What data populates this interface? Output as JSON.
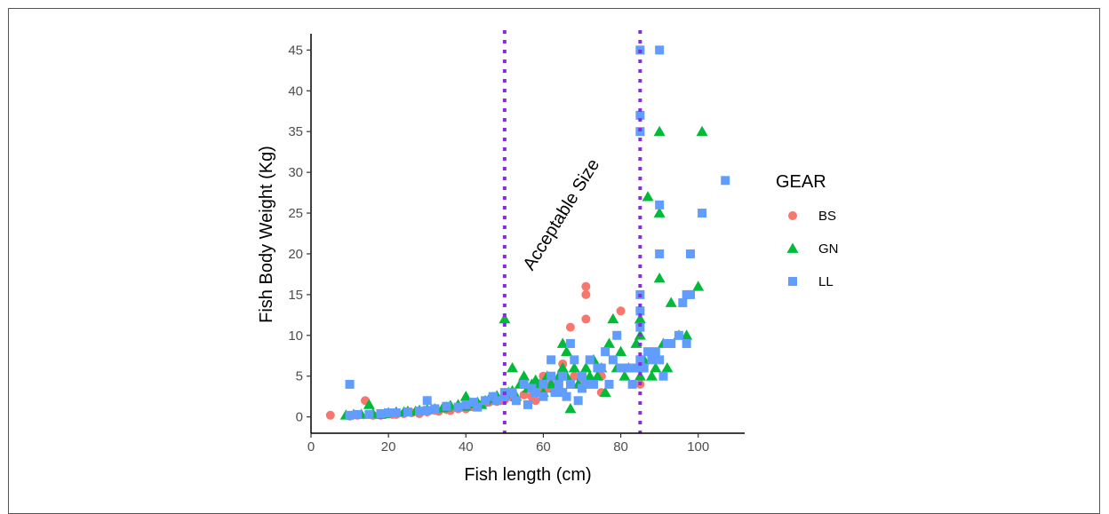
{
  "chart_data": {
    "type": "scatter",
    "title": "",
    "xlabel": "Fish length (cm)",
    "ylabel": "Fish Body Weight (Kg)",
    "xlim": [
      0,
      112
    ],
    "ylim": [
      -2,
      47
    ],
    "xticks": [
      0,
      20,
      40,
      60,
      80,
      100
    ],
    "yticks": [
      0,
      5,
      10,
      15,
      20,
      25,
      30,
      35,
      40,
      45
    ],
    "grid": false,
    "legend": {
      "title": "GEAR",
      "position": "right"
    },
    "vlines": [
      {
        "x": 50,
        "color": "#8a2be2",
        "style": "dotted"
      },
      {
        "x": 85,
        "color": "#8a2be2",
        "style": "dotted"
      }
    ],
    "annotations": [
      {
        "text": "Acceptable Size",
        "x": 64,
        "y": 25,
        "rotation": -58
      }
    ],
    "series": [
      {
        "name": "BS",
        "color": "#f8766d",
        "marker": "circle",
        "points": [
          [
            5,
            0.2
          ],
          [
            10,
            0.1
          ],
          [
            12,
            0.2
          ],
          [
            14,
            2
          ],
          [
            15,
            0.3
          ],
          [
            16,
            0.2
          ],
          [
            18,
            0.2
          ],
          [
            19,
            0.3
          ],
          [
            20,
            0.4
          ],
          [
            21,
            0.3
          ],
          [
            22,
            0.3
          ],
          [
            24,
            0.4
          ],
          [
            26,
            0.5
          ],
          [
            28,
            0.4
          ],
          [
            30,
            0.6
          ],
          [
            32,
            0.8
          ],
          [
            33,
            0.7
          ],
          [
            35,
            0.9
          ],
          [
            36,
            0.8
          ],
          [
            38,
            1
          ],
          [
            40,
            1
          ],
          [
            42,
            1.2
          ],
          [
            44,
            1.5
          ],
          [
            45,
            1.7
          ],
          [
            46,
            1.8
          ],
          [
            48,
            1.9
          ],
          [
            49,
            2
          ],
          [
            50,
            2.1
          ],
          [
            52,
            2.4
          ],
          [
            55,
            2.7
          ],
          [
            57,
            2.5
          ],
          [
            58,
            2
          ],
          [
            59,
            3
          ],
          [
            60,
            5
          ],
          [
            61,
            3.5
          ],
          [
            62,
            4
          ],
          [
            64,
            4.5
          ],
          [
            65,
            6.5
          ],
          [
            67,
            11
          ],
          [
            68,
            5
          ],
          [
            70,
            4
          ],
          [
            71,
            16
          ],
          [
            71,
            15
          ],
          [
            71,
            12
          ],
          [
            75,
            3
          ],
          [
            75,
            5
          ],
          [
            80,
            13
          ],
          [
            85,
            4
          ]
        ]
      },
      {
        "name": "GN",
        "color": "#00ba38",
        "marker": "triangle",
        "points": [
          [
            9,
            0.2
          ],
          [
            11,
            0.3
          ],
          [
            13,
            0.3
          ],
          [
            15,
            1.5
          ],
          [
            16,
            0.4
          ],
          [
            18,
            0.3
          ],
          [
            19,
            0.4
          ],
          [
            20,
            0.5
          ],
          [
            22,
            0.6
          ],
          [
            24,
            0.6
          ],
          [
            25,
            0.7
          ],
          [
            27,
            0.7
          ],
          [
            28,
            0.8
          ],
          [
            30,
            0.9
          ],
          [
            32,
            1
          ],
          [
            34,
            1.1
          ],
          [
            35,
            1.2
          ],
          [
            36,
            1.4
          ],
          [
            38,
            1.5
          ],
          [
            40,
            2.5
          ],
          [
            40,
            1.3
          ],
          [
            42,
            1.6
          ],
          [
            43,
            1.8
          ],
          [
            44,
            1.5
          ],
          [
            45,
            2
          ],
          [
            46,
            2.2
          ],
          [
            47,
            2.4
          ],
          [
            48,
            2.6
          ],
          [
            50,
            2.8
          ],
          [
            50,
            12
          ],
          [
            51,
            3
          ],
          [
            52,
            6
          ],
          [
            52,
            3.2
          ],
          [
            53,
            2.5
          ],
          [
            54,
            4
          ],
          [
            55,
            5
          ],
          [
            56,
            3.5
          ],
          [
            57,
            4
          ],
          [
            58,
            4.5
          ],
          [
            59,
            4
          ],
          [
            60,
            3
          ],
          [
            61,
            5
          ],
          [
            62,
            4
          ],
          [
            63,
            3.5
          ],
          [
            64,
            5
          ],
          [
            65,
            9
          ],
          [
            65,
            6
          ],
          [
            66,
            8
          ],
          [
            66,
            5
          ],
          [
            67,
            1
          ],
          [
            68,
            6
          ],
          [
            69,
            4
          ],
          [
            70,
            5
          ],
          [
            71,
            6
          ],
          [
            72,
            5
          ],
          [
            73,
            7
          ],
          [
            74,
            5
          ],
          [
            75,
            6
          ],
          [
            76,
            3
          ],
          [
            77,
            9
          ],
          [
            78,
            12
          ],
          [
            79,
            6
          ],
          [
            80,
            8
          ],
          [
            81,
            5
          ],
          [
            82,
            6
          ],
          [
            84,
            9
          ],
          [
            85,
            12
          ],
          [
            85,
            10
          ],
          [
            85,
            5
          ],
          [
            86,
            7
          ],
          [
            87,
            27
          ],
          [
            88,
            5
          ],
          [
            89,
            6
          ],
          [
            90,
            35
          ],
          [
            90,
            25
          ],
          [
            90,
            17
          ],
          [
            91,
            9
          ],
          [
            92,
            6
          ],
          [
            93,
            14
          ],
          [
            95,
            10
          ],
          [
            97,
            10
          ],
          [
            100,
            16
          ],
          [
            101,
            35
          ]
        ]
      },
      {
        "name": "LL",
        "color": "#619cff",
        "marker": "square",
        "points": [
          [
            10,
            4
          ],
          [
            10,
            0.2
          ],
          [
            12,
            0.3
          ],
          [
            15,
            0.3
          ],
          [
            18,
            0.4
          ],
          [
            20,
            0.5
          ],
          [
            22,
            0.5
          ],
          [
            25,
            0.6
          ],
          [
            28,
            0.7
          ],
          [
            30,
            2
          ],
          [
            30,
            0.8
          ],
          [
            32,
            1
          ],
          [
            35,
            1.3
          ],
          [
            38,
            1.2
          ],
          [
            40,
            1.5
          ],
          [
            42,
            1.8
          ],
          [
            43,
            1.2
          ],
          [
            45,
            2
          ],
          [
            47,
            2.5
          ],
          [
            48,
            2
          ],
          [
            50,
            2.5
          ],
          [
            50,
            3
          ],
          [
            52,
            3
          ],
          [
            53,
            2
          ],
          [
            55,
            4
          ],
          [
            56,
            1.5
          ],
          [
            57,
            3.5
          ],
          [
            58,
            3
          ],
          [
            60,
            4
          ],
          [
            60,
            2.5
          ],
          [
            62,
            7
          ],
          [
            62,
            5
          ],
          [
            63,
            3
          ],
          [
            64,
            4
          ],
          [
            65,
            5
          ],
          [
            65,
            3
          ],
          [
            66,
            2.5
          ],
          [
            67,
            9
          ],
          [
            67,
            4
          ],
          [
            68,
            7
          ],
          [
            69,
            2
          ],
          [
            70,
            5
          ],
          [
            70,
            3.5
          ],
          [
            71,
            4
          ],
          [
            72,
            7
          ],
          [
            73,
            4
          ],
          [
            74,
            6
          ],
          [
            75,
            6
          ],
          [
            76,
            8
          ],
          [
            77,
            4
          ],
          [
            78,
            7
          ],
          [
            79,
            10
          ],
          [
            80,
            6
          ],
          [
            82,
            6
          ],
          [
            83,
            4
          ],
          [
            84,
            6
          ],
          [
            85,
            45
          ],
          [
            85,
            37
          ],
          [
            85,
            35
          ],
          [
            85,
            15
          ],
          [
            85,
            13
          ],
          [
            85,
            11
          ],
          [
            85,
            7
          ],
          [
            86,
            6
          ],
          [
            87,
            8
          ],
          [
            88,
            7
          ],
          [
            89,
            8
          ],
          [
            90,
            45
          ],
          [
            90,
            26
          ],
          [
            90,
            20
          ],
          [
            90,
            7
          ],
          [
            91,
            5
          ],
          [
            92,
            9
          ],
          [
            93,
            9
          ],
          [
            95,
            10
          ],
          [
            96,
            14
          ],
          [
            97,
            15
          ],
          [
            97,
            9
          ],
          [
            98,
            15
          ],
          [
            98,
            20
          ],
          [
            101,
            25
          ],
          [
            107,
            29
          ]
        ]
      }
    ]
  }
}
